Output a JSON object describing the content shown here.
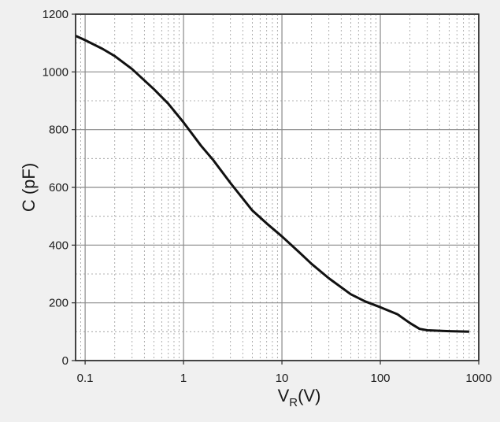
{
  "chart_data": {
    "type": "line",
    "title": "",
    "xlabel": {
      "main": "V",
      "sub": "R",
      "unit": "(V)"
    },
    "ylabel": "C (pF)",
    "x_scale": "log",
    "xlim": [
      0.08,
      1000
    ],
    "ylim": [
      0,
      1200
    ],
    "x_ticks": [
      0.1,
      1,
      10,
      100,
      1000
    ],
    "x_tick_labels": [
      "0.1",
      "1",
      "10",
      "100",
      "1000"
    ],
    "y_ticks": [
      0,
      200,
      400,
      600,
      800,
      1000,
      1200
    ],
    "y_tick_labels": [
      "0",
      "200",
      "400",
      "600",
      "800",
      "1000",
      "1200"
    ],
    "grid": true,
    "series": [
      {
        "x": [
          0.08,
          0.1,
          0.15,
          0.2,
          0.3,
          0.5,
          0.7,
          1,
          1.5,
          2,
          3,
          5,
          7,
          10,
          15,
          20,
          30,
          50,
          70,
          100,
          150,
          200,
          250,
          300,
          500,
          800
        ],
        "y": [
          1125,
          1110,
          1080,
          1055,
          1010,
          940,
          890,
          825,
          745,
          695,
          615,
          520,
          475,
          430,
          375,
          335,
          285,
          230,
          205,
          185,
          160,
          130,
          110,
          105,
          102,
          100
        ]
      }
    ]
  }
}
